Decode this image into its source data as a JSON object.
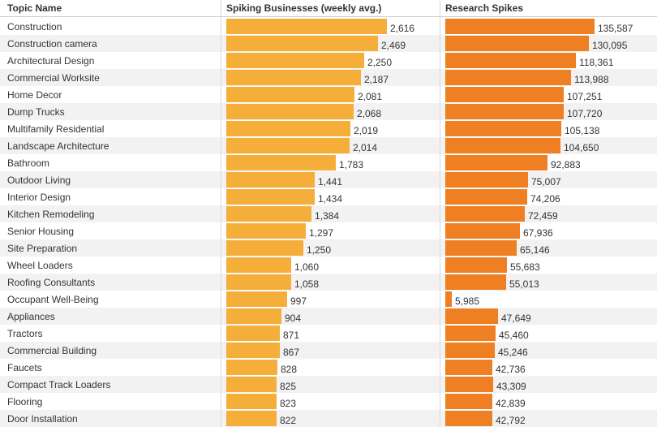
{
  "chart_data": {
    "type": "bar",
    "orientation": "horizontal",
    "columns": {
      "topic": "Topic Name",
      "business": "Spiking Businesses (weekly avg.)",
      "research": "Research Spikes"
    },
    "categories": [
      "Construction",
      "Construction camera",
      "Architectural Design",
      "Commercial Worksite",
      "Home Decor",
      "Dump Trucks",
      "Multifamily Residential",
      "Landscape Architecture",
      "Bathroom",
      "Outdoor Living",
      "Interior Design",
      "Kitchen Remodeling",
      "Senior Housing",
      "Site Preparation",
      "Wheel Loaders",
      "Roofing Consultants",
      "Occupant Well-Being",
      "Appliances",
      "Tractors",
      "Commercial Building",
      "Faucets",
      "Compact Track Loaders",
      "Flooring",
      "Door Installation"
    ],
    "series": [
      {
        "name": "Spiking Businesses (weekly avg.)",
        "color": "#f5ae3a",
        "max": 2616,
        "values": [
          2616,
          2469,
          2250,
          2187,
          2081,
          2068,
          2019,
          2014,
          1783,
          1441,
          1434,
          1384,
          1297,
          1250,
          1060,
          1058,
          997,
          904,
          871,
          867,
          828,
          825,
          823,
          822
        ],
        "labels": [
          "2,616",
          "2,469",
          "2,250",
          "2,187",
          "2,081",
          "2,068",
          "2,019",
          "2,014",
          "1,783",
          "1,441",
          "1,434",
          "1,384",
          "1,297",
          "1,250",
          "1,060",
          "1,058",
          "997",
          "904",
          "871",
          "867",
          "828",
          "825",
          "823",
          "822"
        ]
      },
      {
        "name": "Research Spikes",
        "color": "#ee7f22",
        "max": 135587,
        "values": [
          135587,
          130095,
          118361,
          113988,
          107251,
          107720,
          105138,
          104650,
          92883,
          75007,
          74206,
          72459,
          67936,
          65146,
          55683,
          55013,
          5985,
          47649,
          45460,
          45246,
          42736,
          43309,
          42839,
          42792
        ],
        "labels": [
          "135,587",
          "130,095",
          "118,361",
          "113,988",
          "107,251",
          "107,720",
          "105,138",
          "104,650",
          "92,883",
          "75,007",
          "74,206",
          "72,459",
          "67,936",
          "65,146",
          "55,683",
          "55,013",
          "5,985",
          "47,649",
          "45,460",
          "45,246",
          "42,736",
          "43,309",
          "42,839",
          "42,792"
        ]
      }
    ]
  }
}
